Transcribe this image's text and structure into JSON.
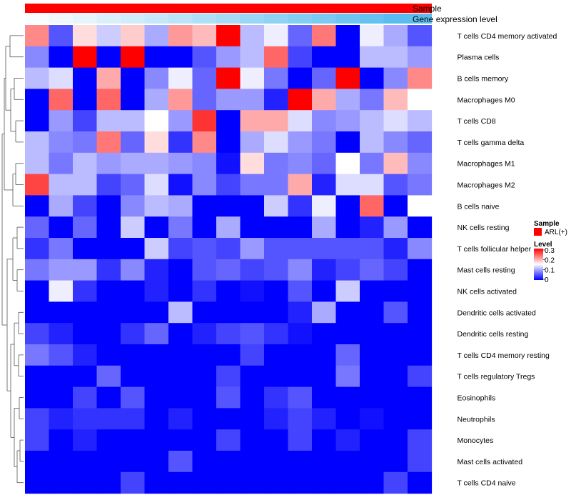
{
  "chart_data": {
    "type": "heatmap",
    "annotations": {
      "sample_label": "Sample",
      "sample_color": "#ff0000",
      "gene_label": "Gene expression level",
      "gene_colors": [
        "#fafdff",
        "#f0f8fd",
        "#e6f5fc",
        "#dbf0fb",
        "#d0ecfa",
        "#c6e8f9",
        "#bbe4f8",
        "#b0e0f7",
        "#a5dbf6",
        "#9ad6f5",
        "#90d2f4",
        "#85cef3",
        "#7acaf2",
        "#6fc6f1",
        "#65c2f0",
        "#5bbdef"
      ]
    },
    "rows": [
      "T cells CD4 memory activated",
      "Plasma cells",
      "B cells memory",
      "Macrophages M0",
      "T cells CD8",
      "T cells gamma delta",
      "Macrophages M1",
      "Macrophages M2",
      "B cells naive",
      "NK cells resting",
      "T cells follicular helper",
      "Mast cells resting",
      "NK cells activated",
      "Dendritic cells activated",
      "Dendritic cells resting",
      "T cells CD4 memory resting",
      "T cells regulatory  Tregs",
      "Eosinophils",
      "Neutrophils",
      "Monocytes",
      "Mast cells activated",
      "T cells CD4 naive"
    ],
    "values": [
      [
        0.22,
        0.05,
        0.17,
        0.12,
        0.18,
        0.1,
        0.21,
        0.19,
        0.3,
        0.11,
        0.14,
        0.06,
        0.23,
        0.0,
        0.14,
        0.1,
        0.05
      ],
      [
        0.08,
        0.0,
        0.3,
        0.0,
        0.3,
        0.0,
        0.0,
        0.05,
        0.09,
        0.11,
        0.24,
        0.04,
        0.0,
        0.0,
        0.11,
        0.11,
        0.09
      ],
      [
        0.11,
        0.13,
        0.0,
        0.2,
        0.0,
        0.08,
        0.14,
        0.06,
        0.3,
        0.14,
        0.07,
        0.0,
        0.06,
        0.3,
        0.0,
        0.08,
        0.22
      ],
      [
        0.0,
        0.24,
        0.0,
        0.24,
        0.0,
        0.1,
        0.21,
        0.06,
        0.09,
        0.09,
        0.02,
        0.3,
        0.2,
        0.1,
        0.07,
        0.19,
        0.15
      ],
      [
        0.0,
        0.09,
        0.04,
        0.11,
        0.11,
        0.15,
        0.09,
        0.27,
        0.0,
        0.2,
        0.2,
        0.13,
        0.08,
        0.09,
        0.11,
        0.13,
        0.11
      ],
      [
        0.11,
        0.08,
        0.07,
        0.23,
        0.06,
        0.17,
        0.03,
        0.22,
        0.0,
        0.1,
        0.13,
        0.09,
        0.07,
        0.0,
        0.11,
        0.08,
        0.06
      ],
      [
        0.11,
        0.07,
        0.11,
        0.09,
        0.1,
        0.1,
        0.09,
        0.08,
        0.01,
        0.17,
        0.07,
        0.08,
        0.06,
        0.15,
        0.07,
        0.19,
        0.08
      ],
      [
        0.26,
        0.11,
        0.11,
        0.04,
        0.06,
        0.13,
        0.01,
        0.08,
        0.04,
        0.07,
        0.07,
        0.2,
        0.02,
        0.13,
        0.13,
        0.05,
        0.07
      ],
      [
        0.0,
        0.1,
        0.04,
        0.0,
        0.08,
        0.11,
        0.1,
        0.0,
        0.0,
        0.0,
        0.12,
        0.03,
        0.14,
        0.0,
        0.24,
        0.0,
        0.15
      ],
      [
        0.06,
        0.0,
        0.06,
        0.0,
        0.12,
        0.0,
        0.07,
        0.0,
        0.1,
        0.0,
        0.0,
        0.0,
        0.1,
        0.0,
        0.02,
        0.09,
        0.0
      ],
      [
        0.03,
        0.07,
        0.0,
        0.0,
        0.0,
        0.12,
        0.04,
        0.05,
        0.04,
        0.09,
        0.05,
        0.05,
        0.05,
        0.05,
        0.05,
        0.02,
        0.08
      ],
      [
        0.07,
        0.09,
        0.09,
        0.03,
        0.08,
        0.02,
        0.0,
        0.05,
        0.06,
        0.04,
        0.05,
        0.08,
        0.02,
        0.04,
        0.06,
        0.04,
        0.0
      ],
      [
        0.0,
        0.14,
        0.03,
        0.0,
        0.0,
        0.02,
        0.0,
        0.03,
        0.0,
        0.01,
        0.0,
        0.05,
        0.0,
        0.12,
        0.0,
        0.0,
        0.0
      ],
      [
        0.0,
        0.0,
        0.0,
        0.0,
        0.0,
        0.0,
        0.11,
        0.0,
        0.0,
        0.0,
        0.0,
        0.02,
        0.1,
        0.0,
        0.0,
        0.05,
        0.0
      ],
      [
        0.04,
        0.02,
        0.0,
        0.0,
        0.03,
        0.06,
        0.0,
        0.02,
        0.04,
        0.05,
        0.03,
        0.01,
        0.0,
        0.0,
        0.0,
        0.0,
        0.0
      ],
      [
        0.07,
        0.05,
        0.02,
        0.0,
        0.0,
        0.0,
        0.0,
        0.0,
        0.0,
        0.04,
        0.0,
        0.0,
        0.0,
        0.06,
        0.0,
        0.0,
        0.0
      ],
      [
        0.0,
        0.0,
        0.0,
        0.06,
        0.0,
        0.0,
        0.0,
        0.0,
        0.04,
        0.0,
        0.0,
        0.0,
        0.0,
        0.07,
        0.0,
        0.0,
        0.04
      ],
      [
        0.0,
        0.0,
        0.04,
        0.0,
        0.05,
        0.0,
        0.0,
        0.0,
        0.05,
        0.0,
        0.03,
        0.05,
        0.0,
        0.0,
        0.0,
        0.0,
        0.0
      ],
      [
        0.04,
        0.02,
        0.03,
        0.03,
        0.03,
        0.0,
        0.02,
        0.0,
        0.0,
        0.0,
        0.02,
        0.04,
        0.02,
        0.0,
        0.01,
        0.0,
        0.0
      ],
      [
        0.04,
        0.0,
        0.02,
        0.0,
        0.0,
        0.0,
        0.0,
        0.0,
        0.04,
        0.0,
        0.0,
        0.04,
        0.0,
        0.02,
        0.0,
        0.0,
        0.04
      ],
      [
        0.0,
        0.0,
        0.0,
        0.0,
        0.0,
        0.0,
        0.05,
        0.0,
        0.0,
        0.0,
        0.0,
        0.0,
        0.0,
        0.0,
        0.0,
        0.0,
        0.04
      ],
      [
        0.0,
        0.0,
        0.0,
        0.0,
        0.04,
        0.0,
        0.0,
        0.0,
        0.0,
        0.0,
        0.0,
        0.0,
        0.0,
        0.0,
        0.0,
        0.04,
        0.0
      ]
    ],
    "color_scale": {
      "min": 0,
      "mid": 0.15,
      "max": 0.3,
      "low_color": "#0000ff",
      "mid_color": "#ffffff",
      "high_color": "#ff0000"
    },
    "legend": {
      "sample_title": "Sample",
      "sample_entry": "ARL(+)",
      "level_title": "Level",
      "level_ticks": [
        "0.3",
        "0.2",
        "0.1",
        "0"
      ],
      "placement": "right"
    }
  }
}
